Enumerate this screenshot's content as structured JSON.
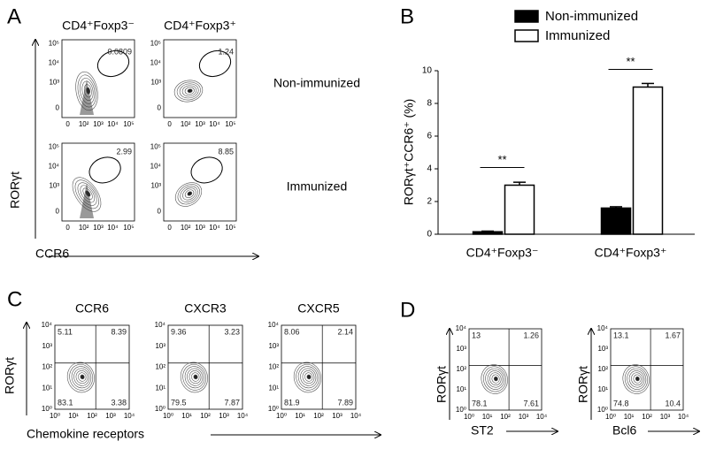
{
  "chart_data": {
    "type": "bar",
    "panel_label": "B",
    "y_label": "RORγt⁺CCR6⁺ (%)",
    "categories": [
      "CD4⁺Foxp3⁻",
      "CD4⁺Foxp3⁺"
    ],
    "series": [
      {
        "name": "Non-immunized",
        "color": "#000000",
        "values": [
          0.15,
          1.6
        ],
        "errors": [
          0.04,
          0.08
        ]
      },
      {
        "name": "Immunized",
        "color": "#ffffff",
        "values": [
          3.0,
          9.0
        ],
        "errors": [
          0.18,
          0.22
        ]
      }
    ],
    "ylim": [
      0,
      10
    ],
    "yticks": [
      0,
      2,
      4,
      6,
      8,
      10
    ],
    "annotations": [
      "**",
      "**"
    ]
  },
  "panel_a": {
    "label": "A",
    "columns": [
      "CD4⁺Foxp3⁻",
      "CD4⁺Foxp3⁺"
    ],
    "rows": [
      "Non-immunized",
      "Immunized"
    ],
    "gates": [
      [
        "0.0809",
        "1.24"
      ],
      [
        "2.99",
        "8.85"
      ]
    ],
    "x_label": "CCR6",
    "y_label": "RORγt",
    "yticks": [
      "10⁵",
      "10⁴",
      "10³",
      "0"
    ],
    "xticks": [
      "0",
      "10²",
      "10³",
      "10⁴",
      "10⁵"
    ]
  },
  "panel_c": {
    "label": "C",
    "plots": [
      {
        "title": "CCR6",
        "quadrants": [
          "5.11",
          "8.39",
          "83.1",
          "3.38"
        ]
      },
      {
        "title": "CXCR3",
        "quadrants": [
          "9.36",
          "3.23",
          "79.5",
          "7.87"
        ]
      },
      {
        "title": "CXCR5",
        "quadrants": [
          "8.06",
          "2.14",
          "81.9",
          "7.89"
        ]
      }
    ],
    "x_label": "Chemokine receptors",
    "y_label": "RORγt",
    "yticks": [
      "10⁴",
      "10³",
      "10²",
      "10¹",
      "10⁰"
    ],
    "xticks": [
      "10⁰",
      "10¹",
      "10²",
      "10³",
      "10⁴"
    ]
  },
  "panel_d": {
    "label": "D",
    "plots": [
      {
        "x_label": "ST2",
        "quadrants": [
          "13",
          "1.26",
          "78.1",
          "7.61"
        ]
      },
      {
        "x_label": "Bcl6",
        "quadrants": [
          "13.1",
          "1.67",
          "74.8",
          "10.4"
        ]
      }
    ],
    "y_label": "RORγt",
    "yticks": [
      "10⁴",
      "10³",
      "10²",
      "10¹",
      "10⁰"
    ],
    "xticks": [
      "10⁰",
      "10¹",
      "10²",
      "10³",
      "10⁴"
    ]
  }
}
